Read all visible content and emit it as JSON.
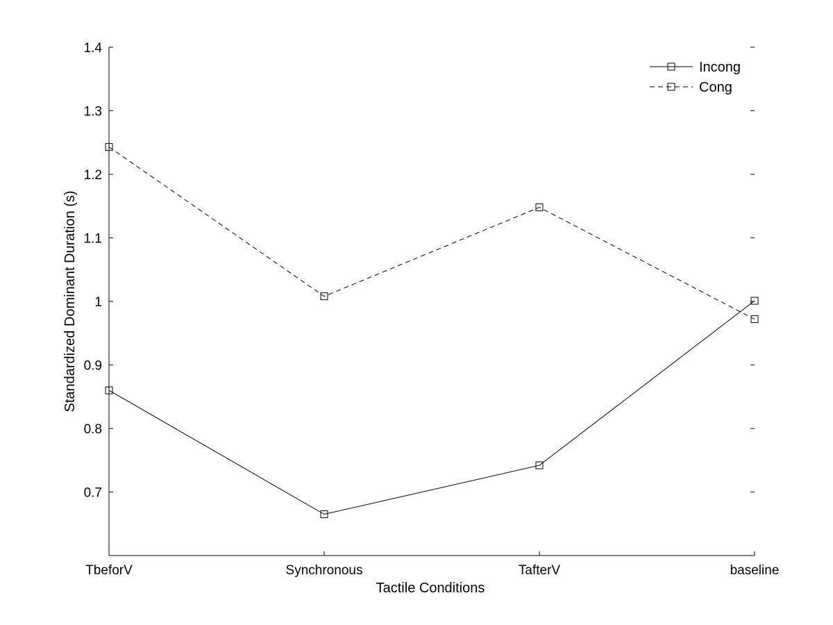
{
  "chart_data": {
    "type": "line",
    "title": "",
    "xlabel": "Tactile Conditions",
    "ylabel": "Standardized Dominant Duration (s)",
    "categories": [
      "TbeforV",
      "Synchronous",
      "TafterV",
      "baseline"
    ],
    "ylim": [
      0.6,
      1.4
    ],
    "yticks": [
      0.7,
      0.8,
      0.9,
      1,
      1.1,
      1.2,
      1.3,
      1.4
    ],
    "ytick_labels": [
      "0.7",
      "0.8",
      "0.9",
      "1",
      "1.1",
      "1.2",
      "1.3",
      "1.4"
    ],
    "grid": false,
    "legend_position": "top-right",
    "marker": "square",
    "series": [
      {
        "name": "Incong",
        "line_style": "solid",
        "color": "#000000",
        "values": [
          0.86,
          0.665,
          0.742,
          1.001
        ]
      },
      {
        "name": "Cong",
        "line_style": "dashed",
        "color": "#000000",
        "values": [
          1.243,
          1.008,
          1.148,
          0.972
        ]
      }
    ]
  }
}
